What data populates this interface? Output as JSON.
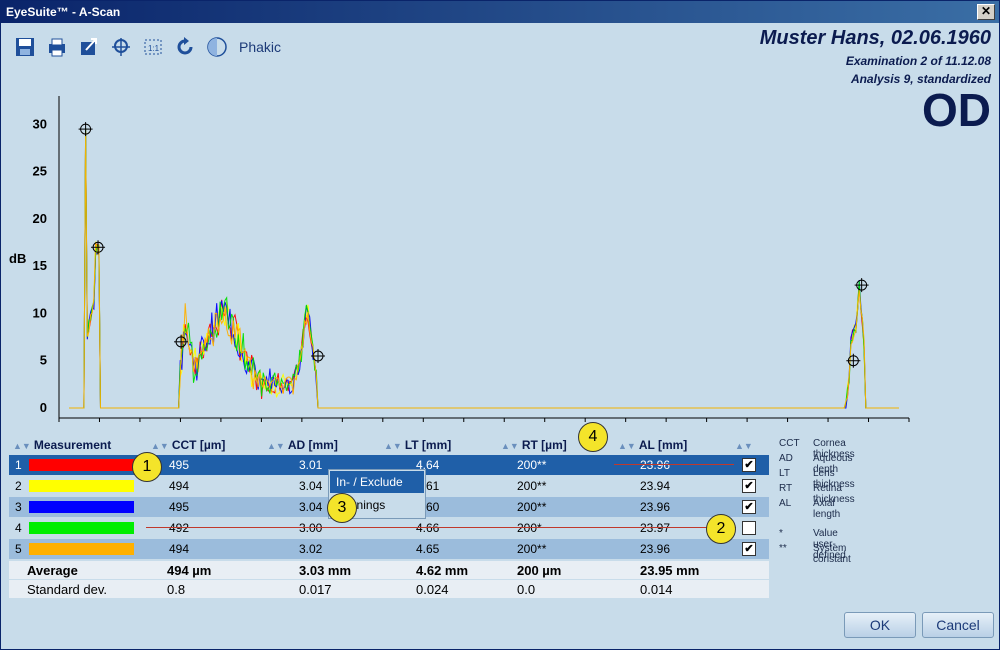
{
  "window": {
    "title": "EyeSuite™ - A-Scan",
    "close_label": "✕"
  },
  "toolbar": {
    "buttons": [
      "save-icon",
      "print-icon",
      "export-icon",
      "zoom-icon",
      "fit-icon",
      "refresh-icon"
    ],
    "phakic_label": "Phakic"
  },
  "patient": {
    "name": "Muster Hans,  02.06.1960",
    "examination": "Examination 2 of 11.12.08",
    "analysis": "Analysis 9, standardized",
    "eye": "OD"
  },
  "chart_data": {
    "type": "line",
    "ylabel": "dB",
    "yticks": [
      "30",
      "25",
      "20",
      "15",
      "10",
      "5",
      "0"
    ],
    "ylim": [
      0,
      33
    ],
    "series": [
      {
        "color": "#ff0000"
      },
      {
        "color": "#ffff00"
      },
      {
        "color": "#0000ff"
      },
      {
        "color": "#00dd00"
      },
      {
        "color": "#ffb000"
      }
    ],
    "markers": [
      {
        "x": 0.02,
        "y": 29.5
      },
      {
        "x": 0.035,
        "y": 17
      },
      {
        "x": 0.135,
        "y": 7
      },
      {
        "x": 0.3,
        "y": 5.5
      },
      {
        "x": 0.955,
        "y": 13
      },
      {
        "x": 0.945,
        "y": 5
      }
    ]
  },
  "table": {
    "headers": {
      "measurement": "Measurement",
      "cct": "CCT [µm]",
      "ad": "AD [mm]",
      "lt": "LT [mm]",
      "rt": "RT [µm]",
      "al": "AL [mm]"
    },
    "rows": [
      {
        "num": "1",
        "color": "#ff0000",
        "cct": "495",
        "ad": "3.01",
        "lt": "4.64",
        "rt": "200**",
        "al": "23.96",
        "checked": "✔"
      },
      {
        "num": "2",
        "color": "#ffff00",
        "cct": "494",
        "ad": "3.04",
        "lt": "4.61",
        "rt": "200**",
        "al": "23.94",
        "checked": "✔"
      },
      {
        "num": "3",
        "color": "#0000ff",
        "cct": "495",
        "ad": "3.04",
        "lt": "4.60",
        "rt": "200**",
        "al": "23.96",
        "checked": "✔"
      },
      {
        "num": "4",
        "color": "#00ee00",
        "cct": "492",
        "ad": "3.00",
        "lt": "4.66",
        "rt": "200*",
        "al": "23.97",
        "checked": ""
      },
      {
        "num": "5",
        "color": "#ffb000",
        "cct": "494",
        "ad": "3.02",
        "lt": "4.65",
        "rt": "200**",
        "al": "23.96",
        "checked": "✔"
      }
    ],
    "average": {
      "label": "Average",
      "cct": "494 µm",
      "ad": "3.03 mm",
      "lt": "4.62 mm",
      "rt": "200 µm",
      "al": "23.95 mm"
    },
    "stddev": {
      "label": "Standard dev.",
      "cct": "0.8",
      "ad": "0.017",
      "lt": "0.024",
      "rt": "0.0",
      "al": "0.014"
    }
  },
  "context_menu": {
    "include_exclude": "In- / Exclude",
    "warnings": "Warnings"
  },
  "legend": [
    {
      "abbr": "CCT",
      "desc": "Cornea thickness"
    },
    {
      "abbr": "AD",
      "desc": "Aqueous depth"
    },
    {
      "abbr": "LT",
      "desc": "Lens thickness"
    },
    {
      "abbr": "RT",
      "desc": "Retina thickness"
    },
    {
      "abbr": "AL",
      "desc": "Axial length"
    },
    {
      "abbr": "",
      "desc": ""
    },
    {
      "abbr": "*",
      "desc": "Value user-defined"
    },
    {
      "abbr": "**",
      "desc": "System constant"
    }
  ],
  "badges": [
    "1",
    "2",
    "3",
    "4"
  ],
  "buttons": {
    "ok": "OK",
    "cancel": "Cancel"
  }
}
